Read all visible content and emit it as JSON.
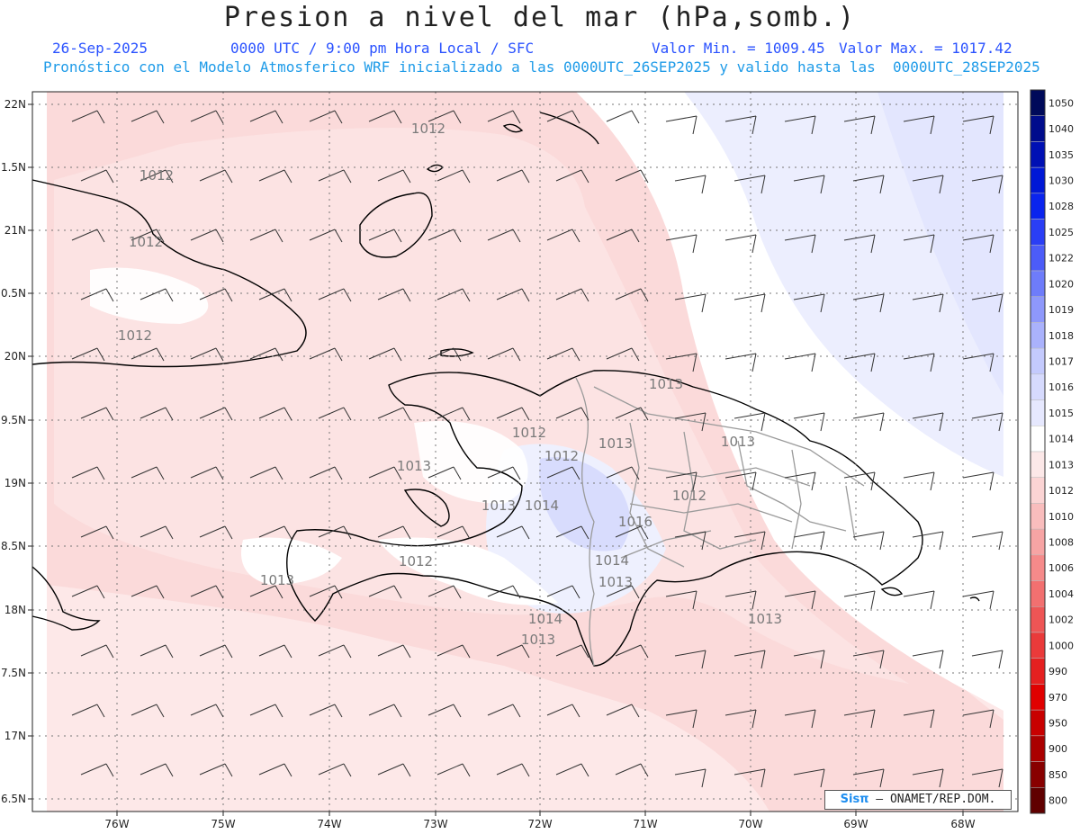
{
  "header": {
    "title": "Presion a nivel del mar (hPa,somb.)",
    "date": "26-Sep-2025",
    "time_info": "0000 UTC / 9:00 pm Hora Local / SFC",
    "valor_min": "Valor Min. = 1009.45",
    "valor_max": "Valor Max. = 1017.42",
    "description": "Pronóstico con el Modelo Atmosferico WRF inicializado a las 0000UTC_26SEP2025 y valido hasta las  0000UTC_28SEP2025"
  },
  "axes": {
    "longitudes": [
      "76W",
      "75W",
      "74W",
      "73W",
      "72W",
      "71W",
      "70W",
      "69W",
      "68W"
    ],
    "latitudes": [
      "22N",
      "1.5N",
      "21N",
      "0.5N",
      "20N",
      "9.5N",
      "19N",
      "8.5N",
      "18N",
      "7.5N",
      "17N",
      "6.5N"
    ]
  },
  "colorbar": {
    "levels": [
      "1050",
      "1040",
      "1035",
      "1030",
      "1028",
      "1025",
      "1022",
      "1020",
      "1019",
      "1018",
      "1017",
      "1016",
      "1015",
      "1014",
      "1013",
      "1012",
      "1010",
      "1008",
      "1006",
      "1004",
      "1002",
      "1000",
      "990",
      "970",
      "950",
      "900",
      "850",
      "800"
    ],
    "colors": [
      "#000a5a",
      "#000c8c",
      "#0010b4",
      "#0018d6",
      "#0a24ee",
      "#2a3ef5",
      "#4c5cf8",
      "#6e7cfa",
      "#8e98fb",
      "#aab2fc",
      "#c4cafd",
      "#d6dafd",
      "#e6e8fe",
      "#ffffff",
      "#fce8e8",
      "#fbd4d4",
      "#f9bdbd",
      "#f7a4a4",
      "#f58a8a",
      "#f27070",
      "#ee5555",
      "#ea3a3a",
      "#e52020",
      "#e00000",
      "#c80000",
      "#aa0000",
      "#880000",
      "#600000"
    ]
  },
  "contour_labels": [
    "1012",
    "1012",
    "1012",
    "1012",
    "1013",
    "1012",
    "1012",
    "1013",
    "1013",
    "1014",
    "1013",
    "1016",
    "1012",
    "1014",
    "1013",
    "1012",
    "1013",
    "1014",
    "1013",
    "1013",
    "1013"
  ],
  "credit": {
    "logo": "Sisπ",
    "text": " – ONAMET/REP.DOM."
  }
}
